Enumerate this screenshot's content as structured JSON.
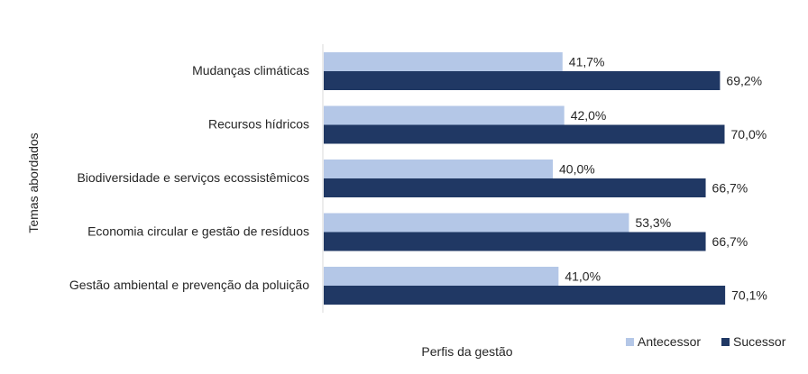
{
  "chart_data": {
    "type": "bar",
    "orientation": "horizontal",
    "categories": [
      "Mudanças climáticas",
      "Recursos hídricos",
      "Biodiversidade e serviços ecossistêmicos",
      "Economia circular e gestão de resíduos",
      "Gestão ambiental e prevenção da poluição"
    ],
    "series": [
      {
        "name": "Antecessor",
        "values": [
          41.7,
          42.0,
          40.0,
          53.3,
          41.0
        ],
        "labels": [
          "41,7%",
          "42,0%",
          "40,0%",
          "53,3%",
          "41,0%"
        ],
        "color": "#b4c7e7"
      },
      {
        "name": "Sucessor",
        "values": [
          69.2,
          70.0,
          66.7,
          66.7,
          70.1
        ],
        "labels": [
          "69,2%",
          "70,0%",
          "66,7%",
          "66,7%",
          "70,1%"
        ],
        "color": "#203864"
      }
    ],
    "xlabel": "Perfis da gestão",
    "ylabel": "Temas abordados",
    "xlim": [
      0,
      80
    ],
    "grid": false,
    "legend_position": "bottom-right"
  }
}
